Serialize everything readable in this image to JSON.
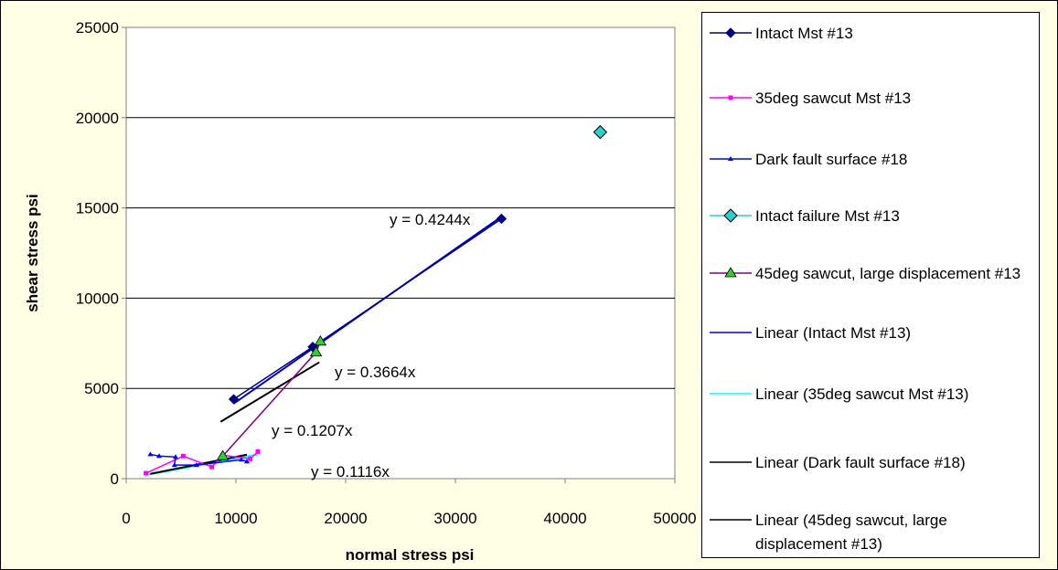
{
  "chart_data": {
    "type": "scatter",
    "title": "",
    "xlabel": "normal stress psi",
    "ylabel": "shear stress psi",
    "xlim": [
      0,
      50000
    ],
    "ylim": [
      0,
      25000
    ],
    "xticks": [
      0,
      10000,
      20000,
      30000,
      40000,
      50000
    ],
    "yticks": [
      0,
      5000,
      10000,
      15000,
      20000,
      25000
    ],
    "grid": "horizontal major gridlines",
    "legend_position": "right",
    "series": [
      {
        "name": "Intact Mst #13",
        "color": "#000080",
        "marker": "diamond",
        "line": true,
        "points": [
          [
            9800,
            4400
          ],
          [
            17000,
            7300
          ],
          [
            34200,
            14400
          ]
        ]
      },
      {
        "name": "35deg sawcut Mst #13",
        "color": "#ff00ff",
        "marker": "square",
        "line": true,
        "points": [
          [
            1800,
            300
          ],
          [
            5200,
            1250
          ],
          [
            7800,
            650
          ],
          [
            8800,
            1300
          ],
          [
            11300,
            1100
          ],
          [
            12000,
            1500
          ]
        ]
      },
      {
        "name": "Dark fault surface #18",
        "color": "#0000ff",
        "marker": "triangle-small",
        "line": true,
        "points": [
          [
            2200,
            1350
          ],
          [
            3000,
            1250
          ],
          [
            4500,
            1200
          ],
          [
            4400,
            750
          ],
          [
            6400,
            750
          ],
          [
            10500,
            1050
          ],
          [
            11000,
            950
          ]
        ]
      },
      {
        "name": "Intact failure Mst #13",
        "color": "#33cccc",
        "marker": "diamond-large",
        "line": false,
        "points": [
          [
            43200,
            19200
          ]
        ]
      },
      {
        "name": "45deg sawcut, large displacement #13",
        "color": "#800080",
        "marker": "triangle",
        "marker_color": "#33cc33",
        "line": true,
        "points": [
          [
            8800,
            1250
          ],
          [
            17300,
            7000
          ],
          [
            17700,
            7600
          ]
        ]
      }
    ],
    "trendlines": [
      {
        "name": "Linear (Intact Mst #13)",
        "color": "#0000cc",
        "x_range": [
          9800,
          34200
        ],
        "slope": 0.4244,
        "equation": "y = 0.4244x"
      },
      {
        "name": "Linear (35deg sawcut Mst #13)",
        "color": "#00ffff",
        "x_range": [
          1800,
          12000
        ],
        "slope": 0.1116,
        "equation": "y = 0.1116x"
      },
      {
        "name": "Linear (Dark fault surface #18)",
        "color": "#000000",
        "x_range": [
          2200,
          11000
        ],
        "slope": 0.1207,
        "equation": "y = 0.1207x"
      },
      {
        "name": "Linear (45deg sawcut, large displacement #13)",
        "color": "#000000",
        "x_range": [
          8800,
          17700
        ],
        "slope": 0.3664,
        "equation": "y = 0.3664x"
      }
    ]
  }
}
